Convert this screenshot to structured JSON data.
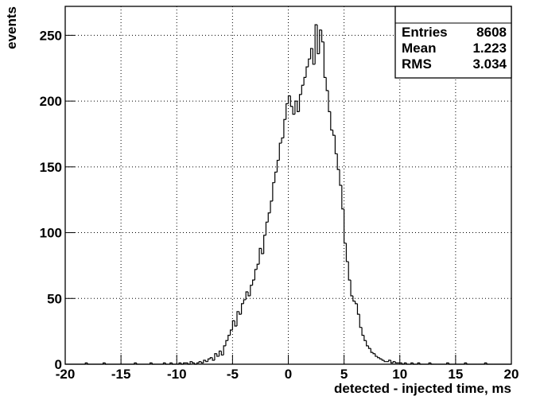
{
  "chart_data": {
    "type": "histogram",
    "x_label": "detected - injected time, ms",
    "y_label": "events",
    "bins": [
      -20,
      -19.8,
      -19.6,
      -19.4,
      -19.2,
      -19,
      -18.8,
      -18.6,
      -18.4,
      -18.2,
      -18,
      -17.8,
      -17.6,
      -17.4,
      -17.2,
      -17,
      -16.8,
      -16.6,
      -16.4,
      -16.2,
      -16,
      -15.8,
      -15.6,
      -15.4,
      -15.2,
      -15,
      -14.8,
      -14.6,
      -14.4,
      -14.2,
      -14,
      -13.8,
      -13.6,
      -13.4,
      -13.2,
      -13,
      -12.8,
      -12.6,
      -12.4,
      -12.2,
      -12,
      -11.8,
      -11.6,
      -11.4,
      -11.2,
      -11,
      -10.8,
      -10.6,
      -10.4,
      -10.2,
      -10,
      -9.8,
      -9.6,
      -9.4,
      -9.2,
      -9,
      -8.8,
      -8.6,
      -8.4,
      -8.2,
      -8,
      -7.8,
      -7.6,
      -7.4,
      -7.2,
      -7,
      -6.8,
      -6.6,
      -6.4,
      -6.2,
      -6,
      -5.8,
      -5.6,
      -5.4,
      -5.2,
      -5,
      -4.8,
      -4.6,
      -4.4,
      -4.2,
      -4,
      -3.8,
      -3.6,
      -3.4,
      -3.2,
      -3,
      -2.8,
      -2.6,
      -2.4,
      -2.2,
      -2,
      -1.8,
      -1.6,
      -1.4,
      -1.2,
      -1,
      -0.8,
      -0.6,
      -0.4,
      -0.2,
      0,
      0.2,
      0.4,
      0.6,
      0.8,
      1,
      1.2,
      1.4,
      1.6,
      1.8,
      2,
      2.2,
      2.4,
      2.6,
      2.8,
      3,
      3.2,
      3.4,
      3.6,
      3.8,
      4,
      4.2,
      4.4,
      4.6,
      4.8,
      5,
      5.2,
      5.4,
      5.6,
      5.8,
      6,
      6.2,
      6.4,
      6.6,
      6.8,
      7,
      7.2,
      7.4,
      7.6,
      7.8,
      8,
      8.2,
      8.4,
      8.6,
      8.8,
      9,
      9.2,
      9.4,
      9.6,
      9.8,
      10,
      10.2,
      10.4,
      10.6,
      10.8,
      11,
      11.2,
      11.4,
      11.6,
      11.8,
      12,
      12.2,
      12.4,
      12.6,
      12.8,
      13,
      13.2,
      13.4,
      13.6,
      13.8,
      14,
      14.2,
      14.4,
      14.6,
      14.8,
      15,
      15.2,
      15.4,
      15.6,
      15.8,
      16,
      16.2,
      16.4,
      16.6,
      16.8,
      17,
      17.2,
      17.4,
      17.6,
      17.8,
      18,
      18.2,
      18.4,
      18.6,
      18.8,
      19,
      19.2,
      19.4,
      19.6,
      19.8,
      20
    ],
    "values": [
      0,
      0,
      0,
      0,
      0,
      0,
      0,
      0,
      0,
      1,
      0,
      0,
      0,
      0,
      0,
      0,
      0,
      1,
      0,
      0,
      0,
      0,
      0,
      0,
      0,
      0,
      0,
      0,
      0,
      0,
      0,
      1,
      0,
      0,
      0,
      0,
      0,
      0,
      1,
      0,
      0,
      0,
      0,
      0,
      1,
      0,
      0,
      1,
      0,
      0,
      0,
      1,
      0,
      1,
      1,
      0,
      2,
      1,
      0,
      1,
      2,
      1,
      3,
      2,
      4,
      5,
      3,
      8,
      6,
      10,
      7,
      14,
      18,
      22,
      26,
      33,
      29,
      40,
      38,
      46,
      49,
      55,
      52,
      60,
      64,
      72,
      76,
      88,
      84,
      98,
      108,
      115,
      124,
      138,
      146,
      155,
      168,
      172,
      186,
      198,
      204,
      196,
      190,
      200,
      192,
      205,
      212,
      218,
      226,
      232,
      240,
      228,
      258,
      236,
      254,
      245,
      218,
      208,
      192,
      178,
      174,
      160,
      148,
      136,
      118,
      92,
      78,
      64,
      52,
      48,
      46,
      38,
      28,
      22,
      18,
      14,
      12,
      9,
      8,
      6,
      5,
      4,
      3,
      2,
      2,
      3,
      1,
      2,
      1,
      1,
      1,
      0,
      1,
      0,
      0,
      1,
      0,
      0,
      1,
      0,
      0,
      0,
      0,
      1,
      0,
      0,
      0,
      0,
      0,
      0,
      0,
      1,
      0,
      0,
      0,
      0,
      0,
      0,
      0,
      1,
      0,
      0,
      0,
      0,
      0,
      0,
      0,
      0,
      1,
      0,
      0,
      0,
      0,
      0,
      0,
      0,
      0,
      0,
      0,
      0
    ],
    "color": "#000000",
    "xlim": [
      -20,
      20
    ],
    "ylim": [
      0,
      272
    ],
    "xticks": [
      -20,
      -15,
      -10,
      -5,
      0,
      5,
      10,
      15,
      20
    ],
    "yticks": [
      0,
      50,
      100,
      150,
      200,
      250
    ],
    "grid": true,
    "stats": [
      {
        "label": "Entries",
        "value": "8608"
      },
      {
        "label": "Mean",
        "value": "1.223"
      },
      {
        "label": "RMS",
        "value": "3.034"
      }
    ]
  }
}
